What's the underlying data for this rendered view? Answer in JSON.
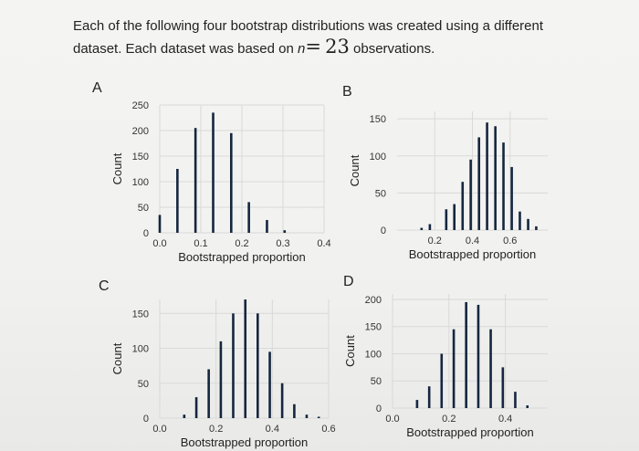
{
  "question": {
    "line1": "Each of the following four bootstrap distributions was created using a different",
    "line2_prefix": "dataset. Each dataset was based on ",
    "n_symbol": "n",
    "equals": "=",
    "n_value": "23",
    "line2_suffix": " observations."
  },
  "panel_labels": {
    "a": "A",
    "b": "B",
    "c": "C",
    "d": "D"
  },
  "chart_data": [
    {
      "panel": "A",
      "type": "bar",
      "xlabel": "Bootstrapped proportion",
      "ylabel": "Count",
      "xlim": [
        0,
        0.4
      ],
      "ylim": [
        0,
        250
      ],
      "xticks": [
        "0.0",
        "0.1",
        "0.2",
        "0.3",
        "0.4"
      ],
      "xtick_values": [
        0,
        0.1,
        0.2,
        0.3,
        0.4
      ],
      "yticks": [
        "0",
        "50",
        "100",
        "150",
        "200",
        "250"
      ],
      "ytick_values": [
        0,
        50,
        100,
        150,
        200,
        250
      ],
      "x": [
        0.0,
        0.043,
        0.087,
        0.13,
        0.174,
        0.217,
        0.261,
        0.304
      ],
      "values": [
        35,
        125,
        205,
        235,
        195,
        60,
        25,
        5
      ],
      "grid": true
    },
    {
      "panel": "B",
      "type": "bar",
      "xlabel": "Bootstrapped proportion",
      "ylabel": "Count",
      "xlim": [
        0.0,
        0.8
      ],
      "ylim": [
        0,
        160
      ],
      "xticks": [
        "0.2",
        "0.4",
        "0.6"
      ],
      "xtick_values": [
        0.2,
        0.4,
        0.6
      ],
      "yticks": [
        "0",
        "50",
        "100",
        "150"
      ],
      "ytick_values": [
        0,
        50,
        100,
        150
      ],
      "x": [
        0.13,
        0.174,
        0.261,
        0.304,
        0.348,
        0.391,
        0.435,
        0.478,
        0.522,
        0.565,
        0.609,
        0.652,
        0.696,
        0.739
      ],
      "values": [
        3,
        8,
        28,
        35,
        65,
        95,
        125,
        145,
        140,
        118,
        85,
        25,
        15,
        5
      ],
      "grid": true
    },
    {
      "panel": "C",
      "type": "bar",
      "xlabel": "Bootstrapped proportion",
      "ylabel": "Count",
      "xlim": [
        0.0,
        0.6
      ],
      "ylim": [
        0,
        170
      ],
      "xticks": [
        "0.0",
        "0.2",
        "0.4",
        "0.6"
      ],
      "xtick_values": [
        0.0,
        0.2,
        0.4,
        0.6
      ],
      "yticks": [
        "0",
        "50",
        "100",
        "150"
      ],
      "ytick_values": [
        0,
        50,
        100,
        150
      ],
      "x": [
        0.087,
        0.13,
        0.174,
        0.217,
        0.261,
        0.304,
        0.348,
        0.391,
        0.435,
        0.478,
        0.522,
        0.565
      ],
      "values": [
        5,
        30,
        70,
        110,
        150,
        170,
        150,
        95,
        50,
        20,
        5,
        2
      ],
      "grid": true
    },
    {
      "panel": "D",
      "type": "bar",
      "xlabel": "Bootstrapped proportion",
      "ylabel": "Count",
      "xlim": [
        0.0,
        0.55
      ],
      "ylim": [
        0,
        210
      ],
      "xticks": [
        "0.0",
        "0.2",
        "0.4"
      ],
      "xtick_values": [
        0.0,
        0.2,
        0.4
      ],
      "yticks": [
        "0",
        "50",
        "100",
        "150",
        "200"
      ],
      "ytick_values": [
        0,
        50,
        100,
        150,
        200
      ],
      "x": [
        0.087,
        0.13,
        0.174,
        0.217,
        0.261,
        0.304,
        0.348,
        0.391,
        0.435,
        0.478
      ],
      "values": [
        15,
        40,
        100,
        145,
        195,
        190,
        145,
        75,
        30,
        5
      ],
      "grid": true
    }
  ]
}
